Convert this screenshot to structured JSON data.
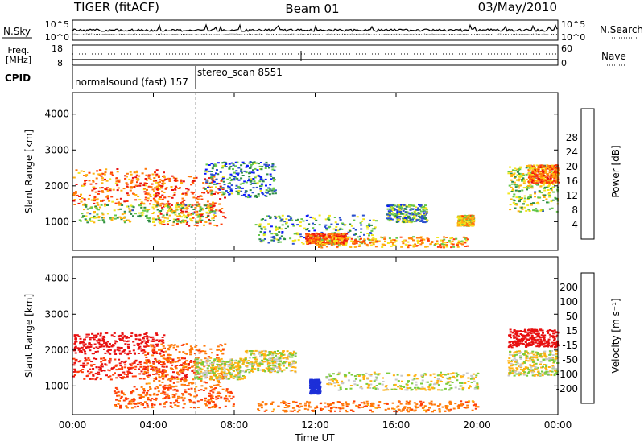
{
  "header": {
    "title_left": "TIGER (fitACF)",
    "title_center": "Beam 01",
    "title_right": "03/May/2010"
  },
  "noise_panel": {
    "left_label": "N.Sky",
    "right_label": "N.Search",
    "left_ticks": [
      "10^5",
      "10^0"
    ],
    "right_ticks": [
      "10^5",
      "10^0"
    ]
  },
  "freq_panel": {
    "left_label": "Freq.",
    "left_unit": "[MHz]",
    "right_label": "Nave",
    "left_ticks": [
      "18",
      "8"
    ],
    "right_ticks": [
      "60",
      "0"
    ]
  },
  "cpid_panel": {
    "label": "CPID",
    "modes": [
      {
        "name": "normalsound (fast) 157",
        "start_hour": 0
      },
      {
        "name": "stereo_scan 8551",
        "start_hour": 6
      }
    ]
  },
  "chart_data": [
    {
      "type": "heatmap",
      "name": "power",
      "ylabel": "Slant Range [km]",
      "xlabel": "Time UT",
      "xlim": [
        0,
        24
      ],
      "ylim": [
        200,
        4600
      ],
      "x_tick_labels": [
        "00:00",
        "04:00",
        "08:00",
        "12:00",
        "16:00",
        "20:00",
        "00:00"
      ],
      "y_ticks": [
        1000,
        2000,
        3000,
        4000
      ],
      "colorbar": {
        "label": "Power [dB]",
        "ticks": [
          "4",
          "8",
          "12",
          "16",
          "20",
          "24",
          "28"
        ],
        "colors": [
          "#0a16ff",
          "#2a4fd0",
          "#2e8c46",
          "#66c84a",
          "#f2e61e",
          "#ffb10f",
          "#ff7a0a",
          "#ff3b07",
          "#e81010"
        ]
      },
      "echo_regions": [
        {
          "t0": 0.0,
          "t1": 4.5,
          "r0": 1500,
          "r1": 2500,
          "value": 24
        },
        {
          "t0": 4.0,
          "t1": 7.5,
          "r0": 900,
          "r1": 2300,
          "value": 26
        },
        {
          "t0": 0.3,
          "t1": 7.0,
          "r0": 1000,
          "r1": 1500,
          "value": 14
        },
        {
          "t0": 6.5,
          "t1": 10.0,
          "r0": 1700,
          "r1": 2700,
          "value": 8
        },
        {
          "t0": 9.0,
          "t1": 15.0,
          "r0": 400,
          "r1": 1200,
          "value": 10
        },
        {
          "t0": 11.5,
          "t1": 13.5,
          "r0": 400,
          "r1": 700,
          "value": 26
        },
        {
          "t0": 12.0,
          "t1": 19.5,
          "r0": 300,
          "r1": 600,
          "value": 20
        },
        {
          "t0": 15.5,
          "t1": 17.5,
          "r0": 1000,
          "r1": 1500,
          "value": 10
        },
        {
          "t0": 19.0,
          "t1": 19.8,
          "r0": 900,
          "r1": 1200,
          "value": 18
        },
        {
          "t0": 21.5,
          "t1": 24.0,
          "r0": 1300,
          "r1": 2600,
          "value": 14
        },
        {
          "t0": 22.5,
          "t1": 24.0,
          "r0": 2100,
          "r1": 2600,
          "value": 24
        }
      ]
    },
    {
      "type": "heatmap",
      "name": "velocity",
      "ylabel": "Slant Range [km]",
      "xlabel": "Time UT",
      "xlim": [
        0,
        24
      ],
      "ylim": [
        200,
        4600
      ],
      "x_tick_labels": [
        "00:00",
        "04:00",
        "08:00",
        "12:00",
        "16:00",
        "20:00",
        "00:00"
      ],
      "y_ticks": [
        1000,
        2000,
        3000,
        4000
      ],
      "colorbar": {
        "label": "Velocity [m s⁻¹]",
        "ticks": [
          "200",
          "100",
          "50",
          "15",
          "-15",
          "-50",
          "-100",
          "-200"
        ],
        "colors": [
          "#1c2fd8",
          "#2a7dd8",
          "#2e8c46",
          "#7acb3a",
          "#c8c8c8",
          "#ffb10f",
          "#ff7a0a",
          "#ff3b07",
          "#e81010"
        ]
      },
      "echo_regions": [
        {
          "t0": 0.0,
          "t1": 4.5,
          "r0": 1900,
          "r1": 2500,
          "value": -200
        },
        {
          "t0": 0.0,
          "t1": 6.0,
          "r0": 1200,
          "r1": 1800,
          "value": -150
        },
        {
          "t0": 3.5,
          "t1": 7.5,
          "r0": 1000,
          "r1": 2200,
          "value": -60
        },
        {
          "t0": 6.0,
          "t1": 8.5,
          "r0": 1200,
          "r1": 1800,
          "value": 0
        },
        {
          "t0": 8.5,
          "t1": 11.0,
          "r0": 1400,
          "r1": 2000,
          "value": 0
        },
        {
          "t0": 11.7,
          "t1": 12.2,
          "r0": 800,
          "r1": 1200,
          "value": 200
        },
        {
          "t0": 12.5,
          "t1": 20.0,
          "r0": 900,
          "r1": 1400,
          "value": 0
        },
        {
          "t0": 2.0,
          "t1": 8.0,
          "r0": 400,
          "r1": 1000,
          "value": -80
        },
        {
          "t0": 9.0,
          "t1": 20.0,
          "r0": 300,
          "r1": 600,
          "value": -60
        },
        {
          "t0": 21.5,
          "t1": 24.0,
          "r0": 2100,
          "r1": 2600,
          "value": -200
        },
        {
          "t0": 21.5,
          "t1": 24.0,
          "r0": 1300,
          "r1": 2000,
          "value": 0
        }
      ]
    }
  ]
}
